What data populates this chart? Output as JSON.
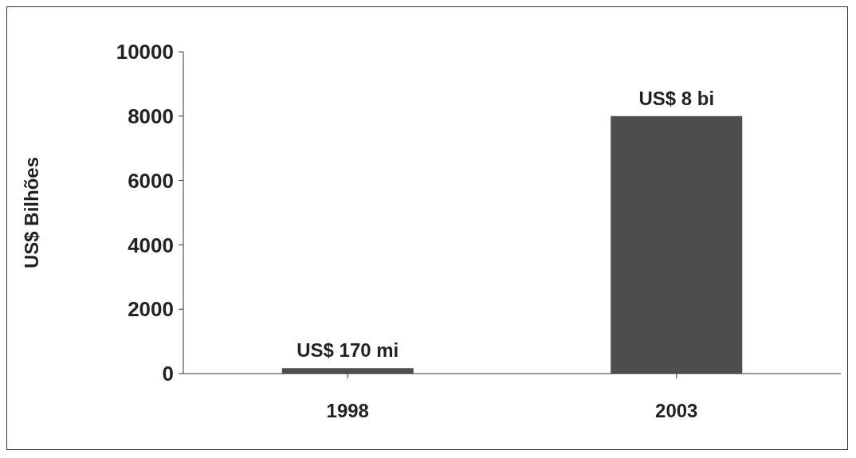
{
  "chart_data": {
    "type": "bar",
    "ylabel": "US$ Bilhões",
    "categories": [
      "1998",
      "2003"
    ],
    "values": [
      170,
      8000
    ],
    "color": "#4d4d4d",
    "value_labels": [
      "US$ 170 mi",
      "US$ 8 bi"
    ],
    "ylim": [
      0,
      10000
    ],
    "yticks": [
      0,
      2000,
      4000,
      6000,
      8000,
      10000
    ],
    "grid": false,
    "legend": false
  }
}
